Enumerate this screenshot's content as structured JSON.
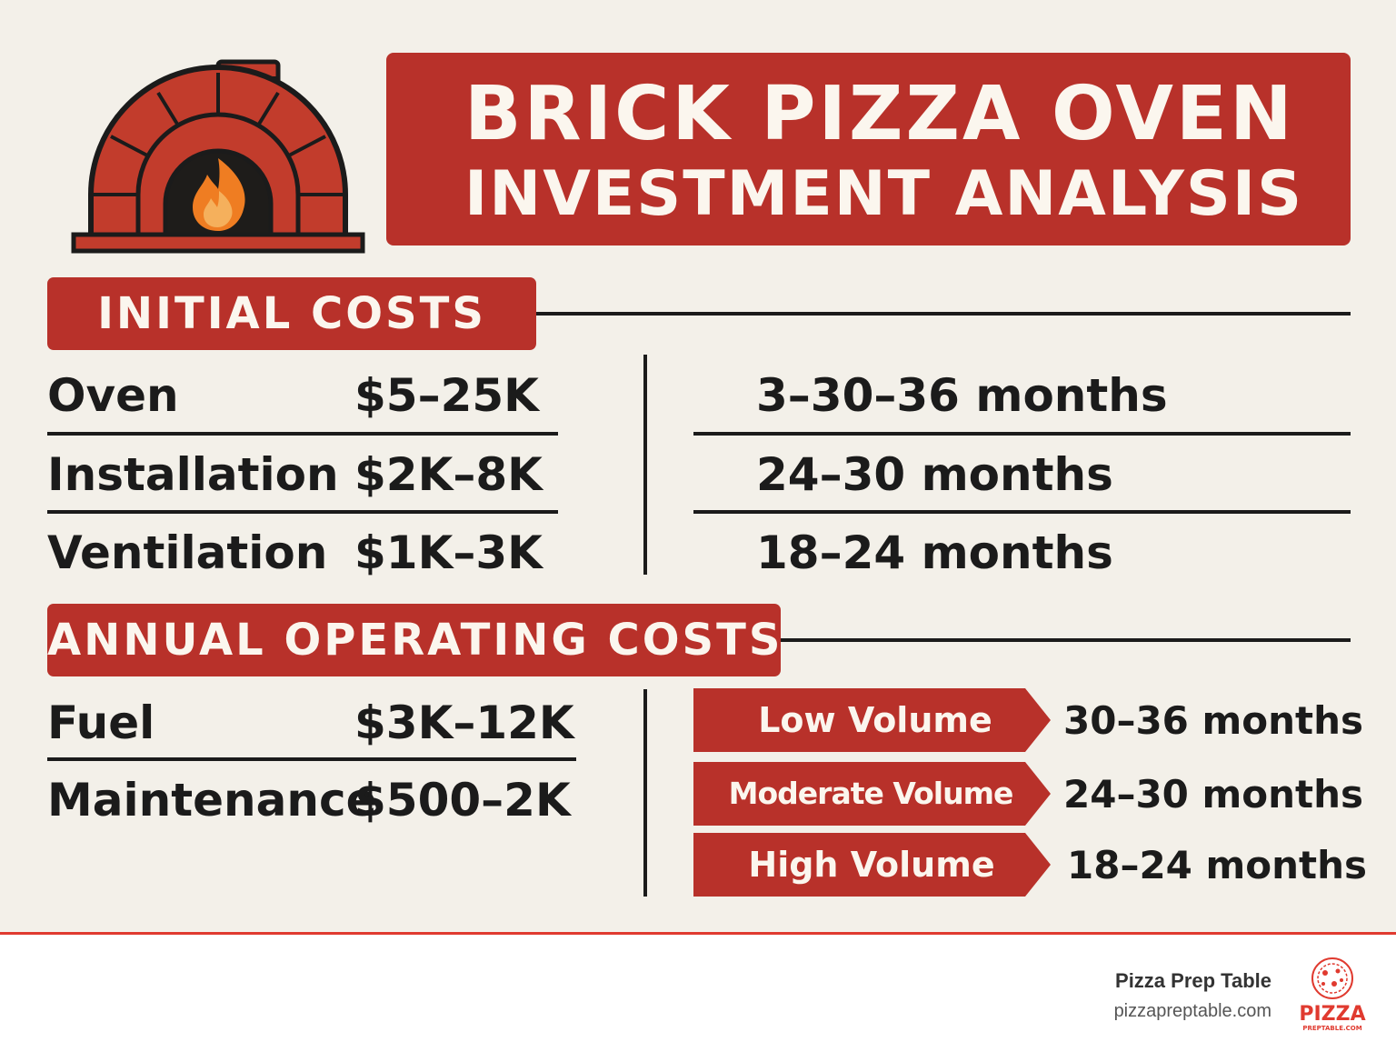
{
  "header": {
    "title_line1": "BRICK PIZZA OVEN",
    "title_line2": "INVESTMENT ANALYSIS"
  },
  "initial_costs": {
    "label": "INITIAL COSTS",
    "items": [
      {
        "name": "Oven",
        "value": "$5–25K",
        "payback": "3–30–36 months"
      },
      {
        "name": "Installation",
        "value": "$2K–8K",
        "payback": "24–30 months"
      },
      {
        "name": "Ventilation",
        "value": "$1K–3K",
        "payback": "18–24 months"
      }
    ]
  },
  "annual_costs": {
    "label": "ANNUAL OPERATING COSTS",
    "items": [
      {
        "name": "Fuel",
        "value": "$3K–12K"
      },
      {
        "name": "Maintenance",
        "value": "$500–2K"
      }
    ]
  },
  "volume_payback": [
    {
      "volume": "Low Volume",
      "months": "30–36 months"
    },
    {
      "volume": "Moderate Volume",
      "months": "24–30 months"
    },
    {
      "volume": "High Volume",
      "months": "18–24 months"
    }
  ],
  "footer": {
    "brand_name": "Pizza Prep Table",
    "brand_url": "pizzapreptable.com",
    "logo_word": "PIZZA",
    "logo_sub": "PREPTABLE.COM"
  },
  "colors": {
    "accent_red": "#b8312a",
    "background": "#f3f0e9",
    "text_dark": "#1b1b1b",
    "flame_orange": "#ef7d22",
    "footer_rule": "#e03a2f"
  },
  "icons": [
    "brick-oven-icon",
    "flame-icon",
    "pizza-logo-icon"
  ]
}
